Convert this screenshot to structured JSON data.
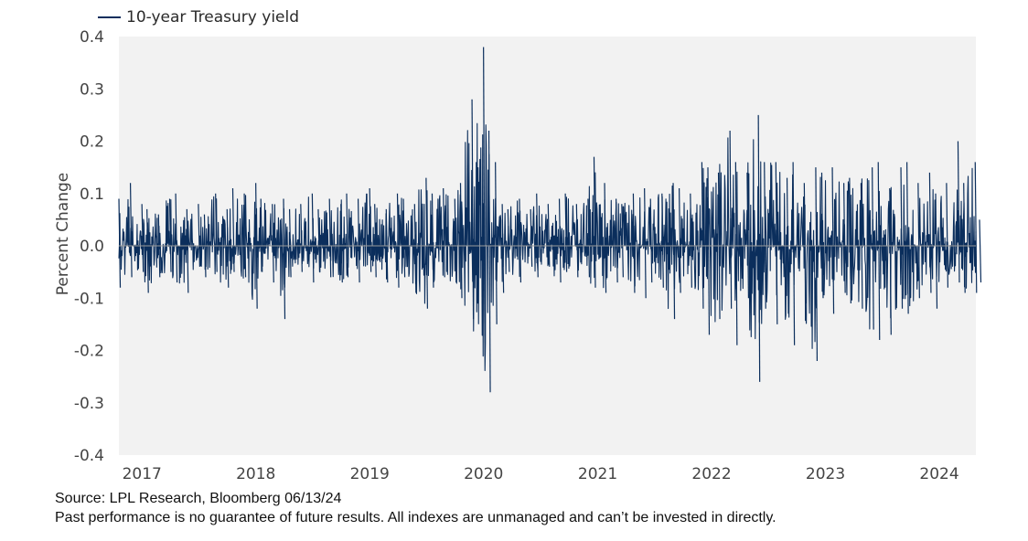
{
  "chart_data": {
    "type": "line",
    "ylabel": "Percent Change",
    "ylim": [
      -0.4,
      0.4
    ],
    "yticks": [
      "0.4",
      "0.3",
      "0.2",
      "0.1",
      "0.0",
      "-0.1",
      "-0.2",
      "-0.3",
      "-0.4"
    ],
    "xlim": [
      "2016-12-05",
      "2024-06-13"
    ],
    "xticks": [
      {
        "label": "2017",
        "date": "2017-01-01"
      },
      {
        "label": "2018",
        "date": "2018-01-01"
      },
      {
        "label": "2019",
        "date": "2019-01-01"
      },
      {
        "label": "2020",
        "date": "2020-01-01"
      },
      {
        "label": "2021",
        "date": "2021-01-01"
      },
      {
        "label": "2022",
        "date": "2022-01-01"
      },
      {
        "label": "2023",
        "date": "2023-01-01"
      },
      {
        "label": "2024",
        "date": "2024-01-01"
      }
    ],
    "grid": false,
    "legend_position": "top-left",
    "series": [
      {
        "name": "10-year Treasury yield",
        "color": "#0b2e5c",
        "x": [
          "2016-12-05",
          "2017-01-05",
          "2017-02-05",
          "2017-03-05",
          "2017-04-05",
          "2017-05-05",
          "2017-06-05",
          "2017-07-05",
          "2017-08-05",
          "2017-09-05",
          "2017-10-05",
          "2017-11-05",
          "2017-12-05",
          "2018-01-05",
          "2018-02-05",
          "2018-03-05",
          "2018-04-05",
          "2018-05-05",
          "2018-06-05",
          "2018-07-05",
          "2018-08-05",
          "2018-09-05",
          "2018-10-05",
          "2018-11-05",
          "2018-12-05",
          "2019-01-05",
          "2019-02-05",
          "2019-03-05",
          "2019-04-05",
          "2019-05-05",
          "2019-06-05",
          "2019-07-05",
          "2019-08-05",
          "2019-09-05",
          "2019-10-05",
          "2019-11-05",
          "2019-12-05",
          "2020-01-05",
          "2020-02-05",
          "2020-03-05",
          "2020-03-20",
          "2020-04-05",
          "2020-05-05",
          "2020-06-05",
          "2020-07-05",
          "2020-08-05",
          "2020-09-05",
          "2020-10-05",
          "2020-11-05",
          "2020-12-05",
          "2021-01-05",
          "2021-02-05",
          "2021-03-05",
          "2021-04-05",
          "2021-05-05",
          "2021-06-05",
          "2021-07-05",
          "2021-08-05",
          "2021-09-05",
          "2021-10-05",
          "2021-11-05",
          "2021-12-05",
          "2022-01-05",
          "2022-02-05",
          "2022-03-05",
          "2022-04-05",
          "2022-05-05",
          "2022-06-05",
          "2022-07-05",
          "2022-08-05",
          "2022-09-05",
          "2022-10-05",
          "2022-11-05",
          "2022-12-05",
          "2023-01-05",
          "2023-02-05",
          "2023-03-05",
          "2023-04-05",
          "2023-05-05",
          "2023-06-05",
          "2023-07-05",
          "2023-08-05",
          "2023-09-05",
          "2023-10-05",
          "2023-11-05",
          "2023-12-05",
          "2024-01-05",
          "2024-02-05",
          "2024-03-05",
          "2024-04-05",
          "2024-05-05",
          "2024-06-05",
          "2024-06-13"
        ],
        "highs": [
          0.09,
          0.12,
          0.08,
          0.07,
          0.06,
          0.09,
          0.1,
          0.07,
          0.08,
          0.06,
          0.1,
          0.07,
          0.11,
          0.1,
          0.12,
          0.09,
          0.08,
          0.09,
          0.07,
          0.08,
          0.1,
          0.07,
          0.09,
          0.08,
          0.1,
          0.09,
          0.11,
          0.08,
          0.07,
          0.1,
          0.09,
          0.08,
          0.13,
          0.1,
          0.11,
          0.09,
          0.12,
          0.28,
          0.38,
          0.22,
          0.16,
          0.08,
          0.07,
          0.09,
          0.07,
          0.1,
          0.08,
          0.09,
          0.1,
          0.08,
          0.09,
          0.17,
          0.12,
          0.09,
          0.08,
          0.1,
          0.11,
          0.09,
          0.1,
          0.12,
          0.11,
          0.1,
          0.16,
          0.15,
          0.14,
          0.22,
          0.16,
          0.14,
          0.25,
          0.16,
          0.16,
          0.13,
          0.16,
          0.12,
          0.15,
          0.14,
          0.15,
          0.12,
          0.13,
          0.12,
          0.15,
          0.16,
          0.11,
          0.15,
          0.16,
          0.12,
          0.14,
          0.1,
          0.12,
          0.2,
          0.12,
          0.16,
          0.05
        ],
        "lows": [
          -0.08,
          -0.06,
          -0.05,
          -0.09,
          -0.06,
          -0.05,
          -0.07,
          -0.09,
          -0.04,
          -0.06,
          -0.05,
          -0.08,
          -0.05,
          -0.06,
          -0.12,
          -0.05,
          -0.07,
          -0.14,
          -0.06,
          -0.05,
          -0.07,
          -0.05,
          -0.06,
          -0.07,
          -0.06,
          -0.07,
          -0.05,
          -0.06,
          -0.07,
          -0.08,
          -0.06,
          -0.09,
          -0.12,
          -0.08,
          -0.06,
          -0.07,
          -0.1,
          -0.14,
          -0.21,
          -0.28,
          -0.15,
          -0.09,
          -0.05,
          -0.07,
          -0.04,
          -0.06,
          -0.04,
          -0.07,
          -0.05,
          -0.06,
          -0.06,
          -0.08,
          -0.09,
          -0.07,
          -0.06,
          -0.09,
          -0.1,
          -0.07,
          -0.08,
          -0.14,
          -0.09,
          -0.08,
          -0.12,
          -0.17,
          -0.14,
          -0.12,
          -0.19,
          -0.1,
          -0.26,
          -0.12,
          -0.15,
          -0.13,
          -0.19,
          -0.11,
          -0.22,
          -0.1,
          -0.13,
          -0.09,
          -0.11,
          -0.12,
          -0.16,
          -0.18,
          -0.17,
          -0.12,
          -0.13,
          -0.1,
          -0.09,
          -0.12,
          -0.08,
          -0.07,
          -0.09,
          -0.09,
          -0.07
        ]
      }
    ]
  },
  "legend": {
    "label": "10-year Treasury yield"
  },
  "footnotes": {
    "source": "Source: LPL Research, Bloomberg 06/13/24",
    "disclaimer": "Past performance is no guarantee of future results. All indexes are unmanaged and can’t be invested in directly."
  }
}
